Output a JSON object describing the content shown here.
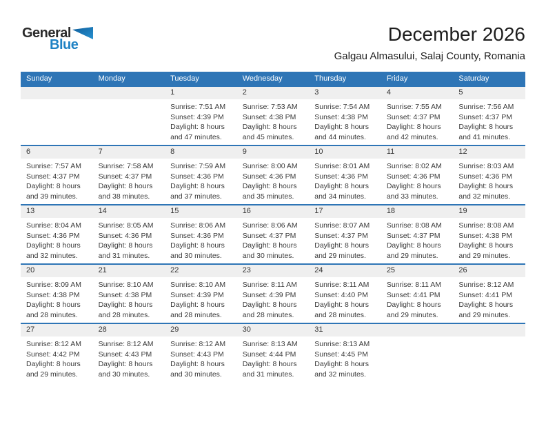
{
  "logo": {
    "general": "General",
    "blue": "Blue"
  },
  "title": "December 2026",
  "subtitle": "Galgau Almasului, Salaj County, Romania",
  "colors": {
    "header_blue": "#2E75B6",
    "band_gray": "#EFEFEF",
    "logo_blue": "#1E82C4"
  },
  "weekdays": [
    "Sunday",
    "Monday",
    "Tuesday",
    "Wednesday",
    "Thursday",
    "Friday",
    "Saturday"
  ],
  "weeks": [
    {
      "cells": [
        {
          "day": "",
          "sunrise": "",
          "sunset": "",
          "daylight": ""
        },
        {
          "day": "",
          "sunrise": "",
          "sunset": "",
          "daylight": ""
        },
        {
          "day": "1",
          "sunrise": "Sunrise: 7:51 AM",
          "sunset": "Sunset: 4:39 PM",
          "daylight": "Daylight: 8 hours and 47 minutes."
        },
        {
          "day": "2",
          "sunrise": "Sunrise: 7:53 AM",
          "sunset": "Sunset: 4:38 PM",
          "daylight": "Daylight: 8 hours and 45 minutes."
        },
        {
          "day": "3",
          "sunrise": "Sunrise: 7:54 AM",
          "sunset": "Sunset: 4:38 PM",
          "daylight": "Daylight: 8 hours and 44 minutes."
        },
        {
          "day": "4",
          "sunrise": "Sunrise: 7:55 AM",
          "sunset": "Sunset: 4:37 PM",
          "daylight": "Daylight: 8 hours and 42 minutes."
        },
        {
          "day": "5",
          "sunrise": "Sunrise: 7:56 AM",
          "sunset": "Sunset: 4:37 PM",
          "daylight": "Daylight: 8 hours and 41 minutes."
        }
      ]
    },
    {
      "cells": [
        {
          "day": "6",
          "sunrise": "Sunrise: 7:57 AM",
          "sunset": "Sunset: 4:37 PM",
          "daylight": "Daylight: 8 hours and 39 minutes."
        },
        {
          "day": "7",
          "sunrise": "Sunrise: 7:58 AM",
          "sunset": "Sunset: 4:37 PM",
          "daylight": "Daylight: 8 hours and 38 minutes."
        },
        {
          "day": "8",
          "sunrise": "Sunrise: 7:59 AM",
          "sunset": "Sunset: 4:36 PM",
          "daylight": "Daylight: 8 hours and 37 minutes."
        },
        {
          "day": "9",
          "sunrise": "Sunrise: 8:00 AM",
          "sunset": "Sunset: 4:36 PM",
          "daylight": "Daylight: 8 hours and 35 minutes."
        },
        {
          "day": "10",
          "sunrise": "Sunrise: 8:01 AM",
          "sunset": "Sunset: 4:36 PM",
          "daylight": "Daylight: 8 hours and 34 minutes."
        },
        {
          "day": "11",
          "sunrise": "Sunrise: 8:02 AM",
          "sunset": "Sunset: 4:36 PM",
          "daylight": "Daylight: 8 hours and 33 minutes."
        },
        {
          "day": "12",
          "sunrise": "Sunrise: 8:03 AM",
          "sunset": "Sunset: 4:36 PM",
          "daylight": "Daylight: 8 hours and 32 minutes."
        }
      ]
    },
    {
      "cells": [
        {
          "day": "13",
          "sunrise": "Sunrise: 8:04 AM",
          "sunset": "Sunset: 4:36 PM",
          "daylight": "Daylight: 8 hours and 32 minutes."
        },
        {
          "day": "14",
          "sunrise": "Sunrise: 8:05 AM",
          "sunset": "Sunset: 4:36 PM",
          "daylight": "Daylight: 8 hours and 31 minutes."
        },
        {
          "day": "15",
          "sunrise": "Sunrise: 8:06 AM",
          "sunset": "Sunset: 4:36 PM",
          "daylight": "Daylight: 8 hours and 30 minutes."
        },
        {
          "day": "16",
          "sunrise": "Sunrise: 8:06 AM",
          "sunset": "Sunset: 4:37 PM",
          "daylight": "Daylight: 8 hours and 30 minutes."
        },
        {
          "day": "17",
          "sunrise": "Sunrise: 8:07 AM",
          "sunset": "Sunset: 4:37 PM",
          "daylight": "Daylight: 8 hours and 29 minutes."
        },
        {
          "day": "18",
          "sunrise": "Sunrise: 8:08 AM",
          "sunset": "Sunset: 4:37 PM",
          "daylight": "Daylight: 8 hours and 29 minutes."
        },
        {
          "day": "19",
          "sunrise": "Sunrise: 8:08 AM",
          "sunset": "Sunset: 4:38 PM",
          "daylight": "Daylight: 8 hours and 29 minutes."
        }
      ]
    },
    {
      "cells": [
        {
          "day": "20",
          "sunrise": "Sunrise: 8:09 AM",
          "sunset": "Sunset: 4:38 PM",
          "daylight": "Daylight: 8 hours and 28 minutes."
        },
        {
          "day": "21",
          "sunrise": "Sunrise: 8:10 AM",
          "sunset": "Sunset: 4:38 PM",
          "daylight": "Daylight: 8 hours and 28 minutes."
        },
        {
          "day": "22",
          "sunrise": "Sunrise: 8:10 AM",
          "sunset": "Sunset: 4:39 PM",
          "daylight": "Daylight: 8 hours and 28 minutes."
        },
        {
          "day": "23",
          "sunrise": "Sunrise: 8:11 AM",
          "sunset": "Sunset: 4:39 PM",
          "daylight": "Daylight: 8 hours and 28 minutes."
        },
        {
          "day": "24",
          "sunrise": "Sunrise: 8:11 AM",
          "sunset": "Sunset: 4:40 PM",
          "daylight": "Daylight: 8 hours and 28 minutes."
        },
        {
          "day": "25",
          "sunrise": "Sunrise: 8:11 AM",
          "sunset": "Sunset: 4:41 PM",
          "daylight": "Daylight: 8 hours and 29 minutes."
        },
        {
          "day": "26",
          "sunrise": "Sunrise: 8:12 AM",
          "sunset": "Sunset: 4:41 PM",
          "daylight": "Daylight: 8 hours and 29 minutes."
        }
      ]
    },
    {
      "cells": [
        {
          "day": "27",
          "sunrise": "Sunrise: 8:12 AM",
          "sunset": "Sunset: 4:42 PM",
          "daylight": "Daylight: 8 hours and 29 minutes."
        },
        {
          "day": "28",
          "sunrise": "Sunrise: 8:12 AM",
          "sunset": "Sunset: 4:43 PM",
          "daylight": "Daylight: 8 hours and 30 minutes."
        },
        {
          "day": "29",
          "sunrise": "Sunrise: 8:12 AM",
          "sunset": "Sunset: 4:43 PM",
          "daylight": "Daylight: 8 hours and 30 minutes."
        },
        {
          "day": "30",
          "sunrise": "Sunrise: 8:13 AM",
          "sunset": "Sunset: 4:44 PM",
          "daylight": "Daylight: 8 hours and 31 minutes."
        },
        {
          "day": "31",
          "sunrise": "Sunrise: 8:13 AM",
          "sunset": "Sunset: 4:45 PM",
          "daylight": "Daylight: 8 hours and 32 minutes."
        },
        {
          "day": "",
          "sunrise": "",
          "sunset": "",
          "daylight": ""
        },
        {
          "day": "",
          "sunrise": "",
          "sunset": "",
          "daylight": ""
        }
      ]
    }
  ]
}
